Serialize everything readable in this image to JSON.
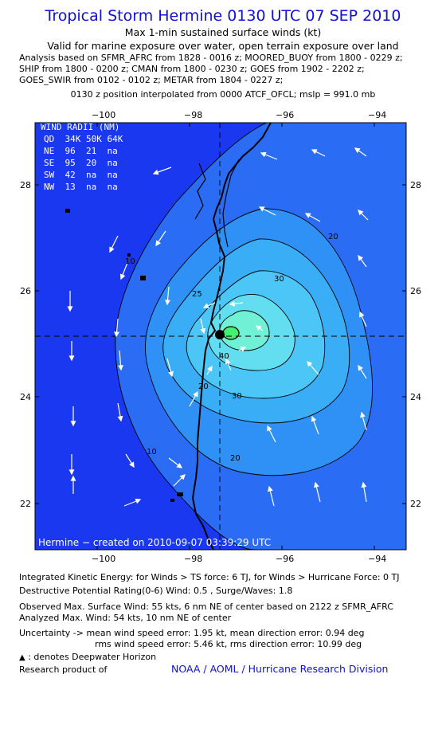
{
  "header": {
    "title": "Tropical Storm Hermine 0130 UTC 07 SEP 2010",
    "subtitle": "Max 1-min sustained surface winds (kt)",
    "validity": "Valid for marine exposure over water, open terrain exposure over land",
    "analysis_lines": [
      "Analysis based on SFMR_AFRC from 1828 - 0016 z; MOORED_BUOY from 1800 - 0229 z;",
      "SHIP from 1800 - 0200 z; CMAN from 1800 - 0230 z; GOES from 1902 - 2202 z;",
      "GOES_SWIR from 0102 - 0102 z; METAR from 1804 - 0227 z;"
    ],
    "position_line": "0130 z position interpolated from 0000 ATCF_OFCL; mslp = 991.0 mb"
  },
  "map": {
    "lon_ticks": [
      "−100",
      "−98",
      "−96",
      "−94"
    ],
    "lat_ticks": [
      "28",
      "26",
      "24",
      "22"
    ],
    "wind_radii": {
      "heading": "WIND RADII (NM)",
      "columns": "QD  34K 50K 64K",
      "rows": [
        "NE  96  21  na",
        "SE  95  20  na",
        "SW  42  na  na",
        "NW  13  na  na"
      ]
    },
    "contour_labels": [
      "10",
      "20",
      "30",
      "40",
      "25",
      "20",
      "10",
      "20",
      "30"
    ],
    "credit": "Hermine − created on 2010-09-07 03:39:29 UTC",
    "colors": {
      "ocean_base": "#1a38f0",
      "band_10": "#2a6cf4",
      "band_20": "#2f90f6",
      "band_25": "#39aef7",
      "band_30": "#4cc6f6",
      "band_40": "#62def0",
      "band_core": "#70f0d4",
      "center": "#44f070"
    }
  },
  "footer": {
    "ike": "Integrated Kinetic Energy:  for Winds > TS force: 6 TJ,  for Winds > Hurricane Force: 0 TJ",
    "dpr": "Destructive Potential Rating(0-6)   Wind: 0.5 , Surge/Waves: 1.8",
    "observed": "Observed Max. Surface Wind: 55 kts, 6 nm NE of center based on 2122 z SFMR_AFRC",
    "analyzed": "Analyzed Max. Wind: 54 kts, 10 nm NE of center",
    "uncertainty1": "Uncertainty -> mean wind speed error: 1.95 kt,   mean direction error: 0.94 deg",
    "uncertainty2": "rms wind speed error: 5.46 kt,   rms direction error: 10.99 deg",
    "deepwater": ": denotes Deepwater Horizon",
    "research": "Research product of",
    "org": "NOAA / AOML / Hurricane Research Division"
  }
}
